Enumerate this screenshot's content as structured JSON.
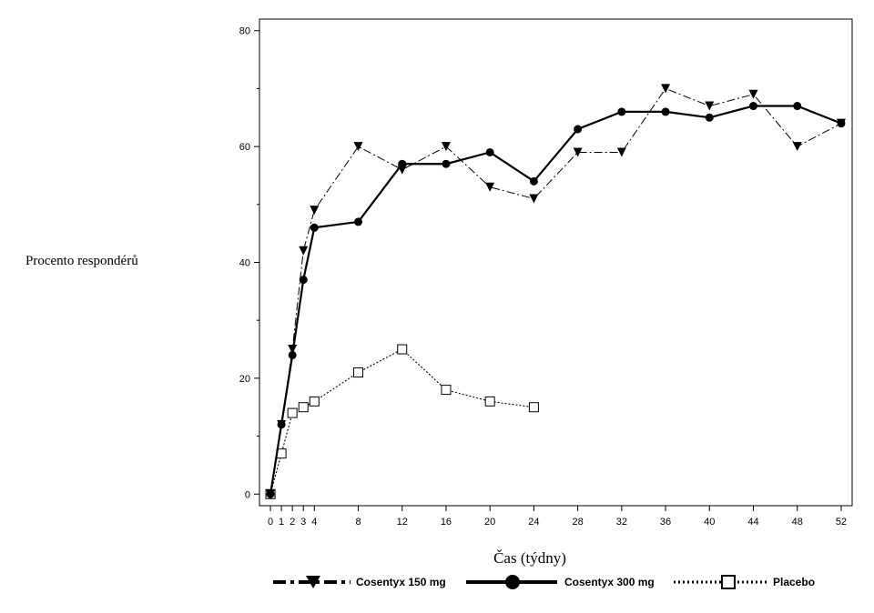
{
  "chart_data": {
    "type": "line",
    "title": "",
    "xlabel": "Čas (týdny)",
    "ylabel": "Procento respondérů",
    "xlim": [
      -1,
      53
    ],
    "ylim": [
      -2,
      82
    ],
    "x_ticks": [
      0,
      1,
      2,
      3,
      4,
      8,
      12,
      16,
      20,
      24,
      28,
      32,
      36,
      40,
      44,
      48,
      52
    ],
    "y_ticks": [
      0,
      20,
      40,
      60,
      80
    ],
    "grid": false,
    "legend_position": "bottom",
    "series": [
      {
        "name": "Cosentyx 150 mg",
        "style": "dash-dot",
        "marker": "triangle-down",
        "color": "#000000",
        "x": [
          0,
          1,
          2,
          3,
          4,
          8,
          12,
          16,
          20,
          24,
          28,
          32,
          36,
          40,
          44,
          48,
          52
        ],
        "y": [
          0,
          12,
          25,
          42,
          49,
          60,
          56,
          60,
          53,
          51,
          59,
          59,
          70,
          67,
          69,
          60,
          64
        ]
      },
      {
        "name": "Cosentyx 300 mg",
        "style": "solid",
        "marker": "circle",
        "color": "#000000",
        "x": [
          0,
          1,
          2,
          3,
          4,
          8,
          12,
          16,
          20,
          24,
          28,
          32,
          36,
          40,
          44,
          48,
          52
        ],
        "y": [
          0,
          12,
          24,
          37,
          46,
          47,
          57,
          57,
          59,
          54,
          63,
          66,
          66,
          65,
          67,
          67,
          64
        ]
      },
      {
        "name": "Placebo",
        "style": "dotted",
        "marker": "square-open",
        "color": "#000000",
        "x": [
          0,
          1,
          2,
          3,
          4,
          8,
          12,
          16,
          20,
          24
        ],
        "y": [
          0,
          7,
          14,
          15,
          16,
          21,
          25,
          18,
          16,
          15
        ]
      }
    ]
  }
}
